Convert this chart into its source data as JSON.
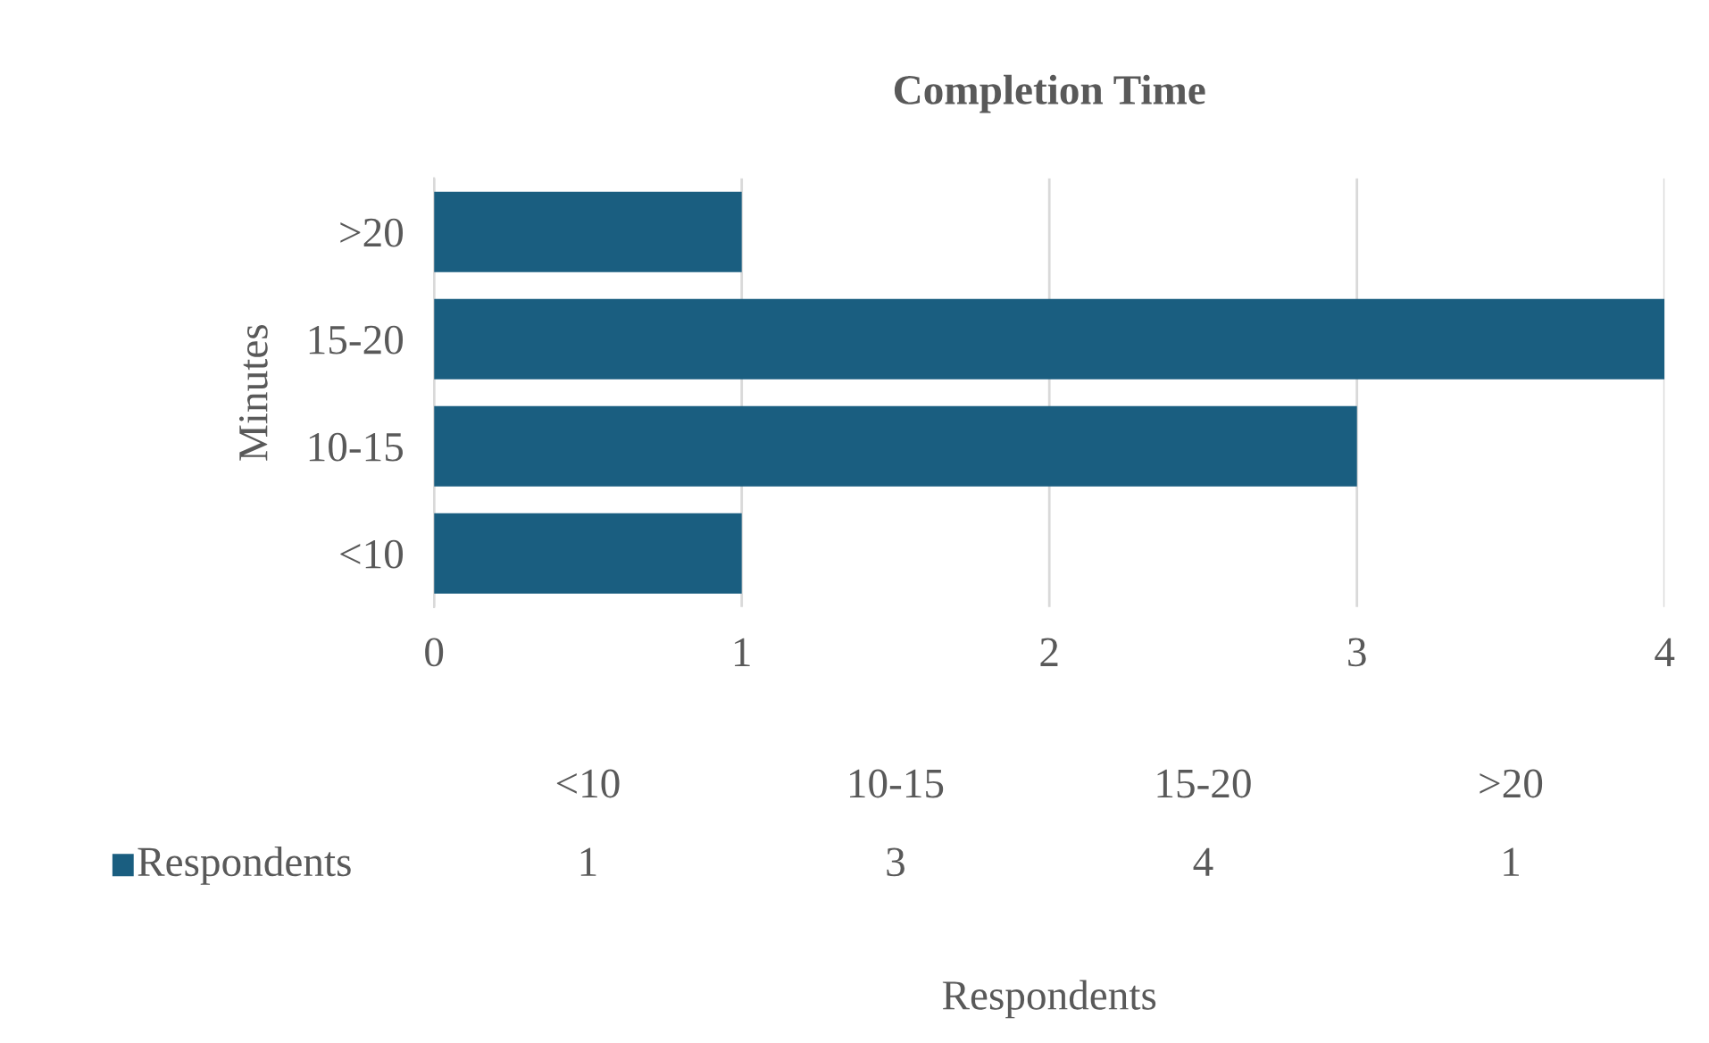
{
  "chart_data": [
    {
      "type": "bar",
      "orientation": "horizontal",
      "title": "Completion Time",
      "ylabel": "Minutes",
      "categories": [
        ">20",
        "15-20",
        "10-15",
        "<10"
      ],
      "series": [
        {
          "color": "#1a5e80",
          "values": [
            1,
            4,
            3,
            1
          ]
        }
      ],
      "xlim": [
        0,
        4
      ],
      "xticks": [
        0,
        1,
        2,
        3,
        4
      ],
      "grid": "x"
    },
    {
      "type": "other",
      "data_labels": true,
      "xlabel": "Respondents",
      "categories": [
        "<10",
        "10-15",
        "15-20",
        ">20"
      ],
      "series": [
        {
          "name": "Respondents",
          "color": "#1a5e80",
          "values": [
            1,
            3,
            4,
            1
          ]
        }
      ]
    }
  ]
}
